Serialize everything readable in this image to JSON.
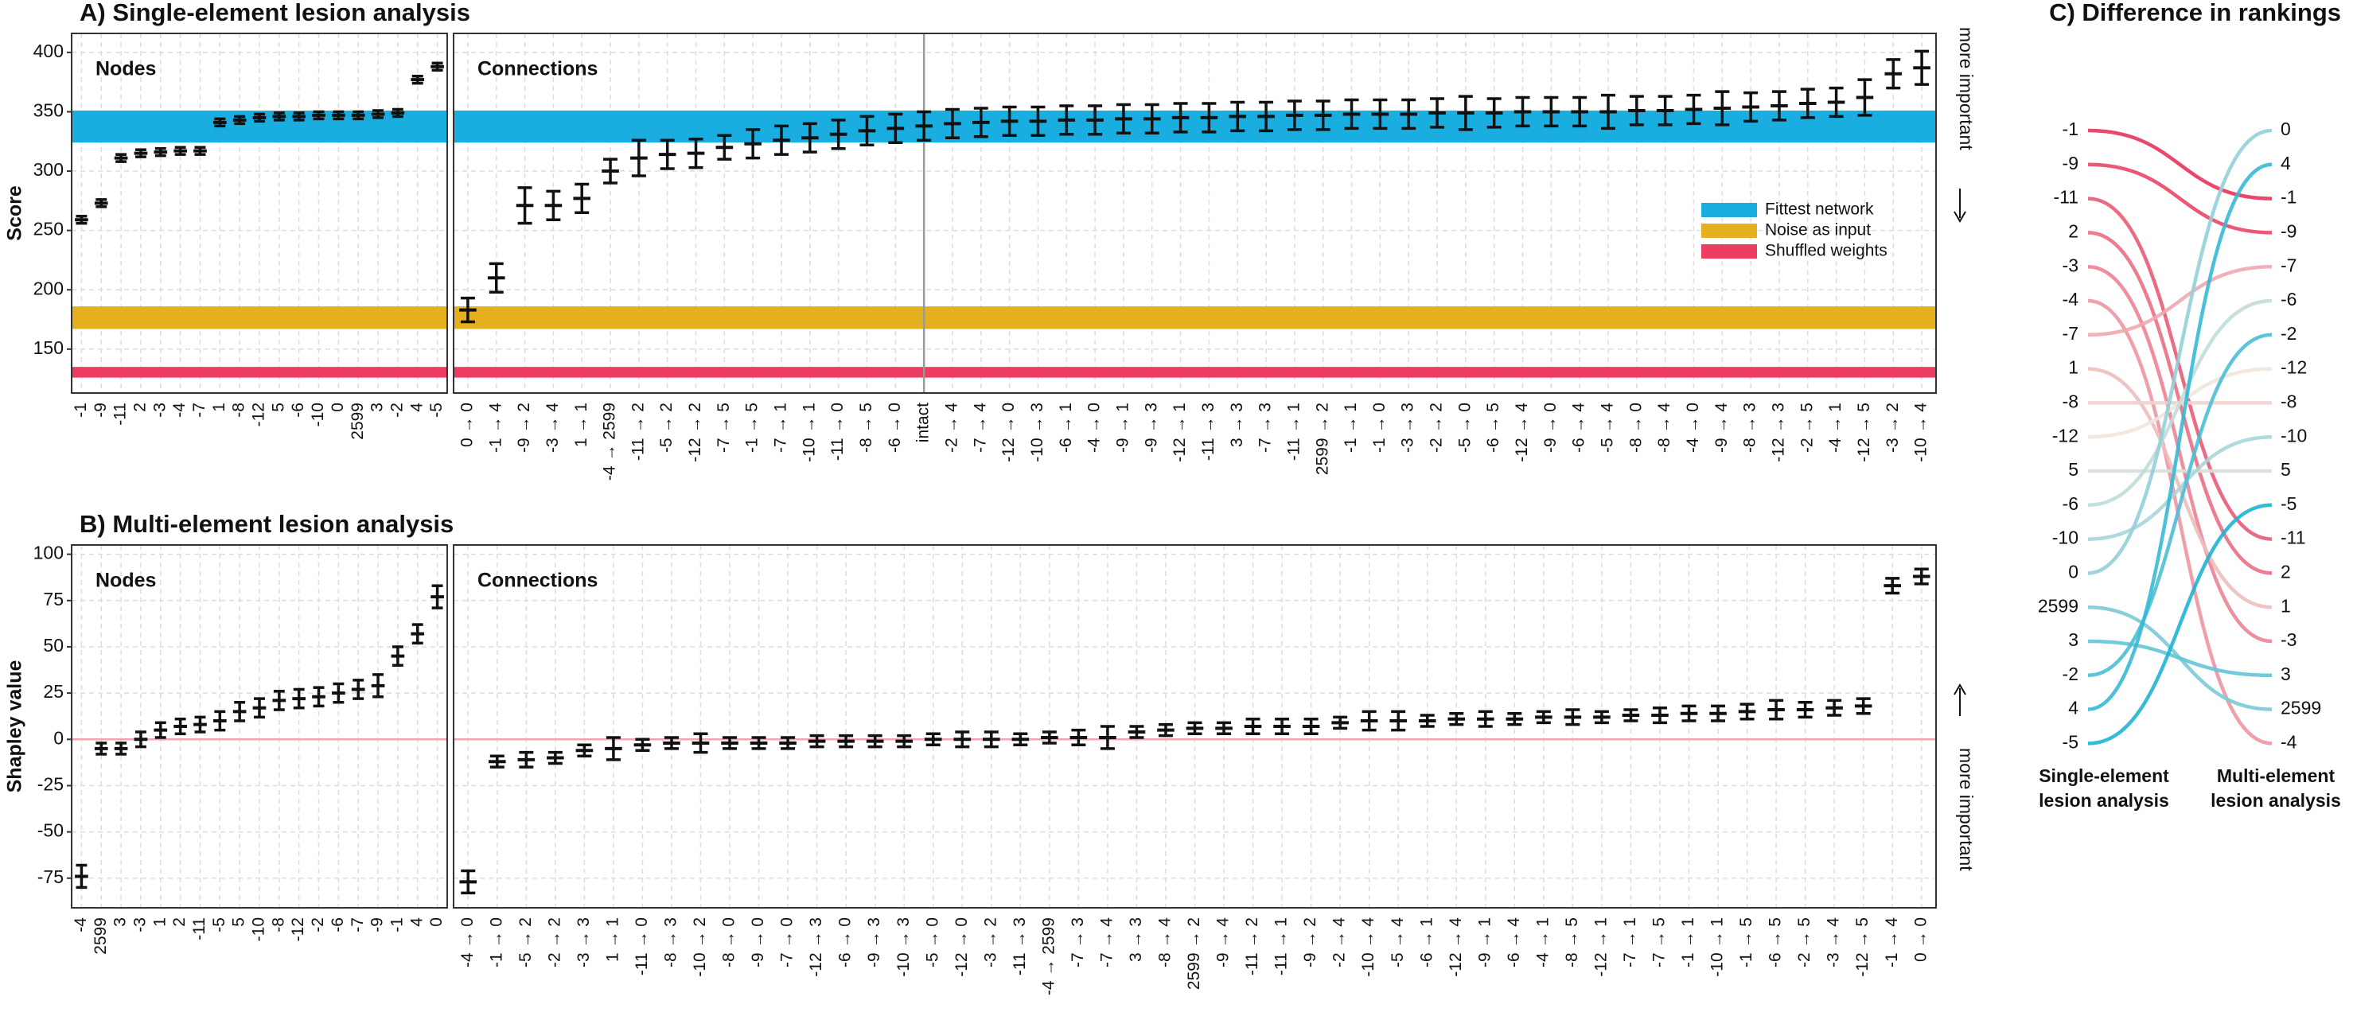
{
  "chart_data": [
    {
      "type": "errorbar",
      "title": "A) Single-element lesion analysis",
      "subtitle": "Nodes",
      "ylabel": "Score",
      "categories": [
        "-1",
        "-9",
        "-11",
        "2",
        "-3",
        "-4",
        "-7",
        "1",
        "-8",
        "-12",
        "5",
        "-6",
        "-10",
        "0",
        "2599",
        "3",
        "-2",
        "4",
        "-5"
      ],
      "category_colors": [
        "#e8335a",
        "#e8335a",
        "#111111",
        "#111111",
        "#111111",
        "#111111",
        "#111111",
        "#111111",
        "#111111",
        "#111111",
        "#111111",
        "#111111",
        "#111111",
        "#111111",
        "#111111",
        "#111111",
        "#111111",
        "#e8335a",
        "#e8335a"
      ],
      "values": [
        259,
        273,
        311,
        315,
        316,
        317,
        317,
        341,
        343,
        345,
        346,
        346,
        347,
        347,
        347,
        348,
        349,
        377,
        388
      ],
      "errors": [
        3,
        3,
        3,
        3,
        3,
        3,
        3,
        3,
        3,
        3,
        3,
        3,
        3,
        3,
        3,
        3,
        3,
        3,
        3
      ],
      "bands": [
        {
          "name": "Fittest network",
          "color": "#1aaee0",
          "range": [
            324,
            351
          ]
        },
        {
          "name": "Noise as input",
          "color": "#e4b01f",
          "range": [
            167,
            186
          ]
        },
        {
          "name": "Shuffled weights",
          "color": "#ee3d63",
          "range": [
            126,
            135
          ]
        }
      ],
      "ylim": [
        113,
        416
      ],
      "yticks": [
        150,
        200,
        250,
        300,
        350,
        400
      ],
      "grid": true
    },
    {
      "type": "errorbar",
      "subtitle": "Connections",
      "annotation": "more important",
      "categories": [
        "0 → 0",
        "-1 → 4",
        "-9 → 2",
        "-3 → 4",
        "1 → 1",
        "-4 → 2599",
        "-11 → 2",
        "-5 → 2",
        "-12 → 2",
        "-7 → 5",
        "-1 → 5",
        "-7 → 1",
        "-10 → 1",
        "-11 → 0",
        "-8 → 5",
        "-6 → 0",
        "intact",
        "-2 → 4",
        "-7 → 4",
        "-12 → 0",
        "-10 → 3",
        "-6 → 1",
        "-4 → 0",
        "-9 → 1",
        "-9 → 3",
        "-12 → 1",
        "-11 → 3",
        "3 → 3",
        "-7 → 3",
        "-11 → 1",
        "2599 → 2",
        "-1 → 1",
        "-1 → 0",
        "-3 → 3",
        "-2 → 2",
        "-5 → 0",
        "-6 → 5",
        "-12 → 4",
        "-9 → 0",
        "-6 → 4",
        "-5 → 4",
        "-8 → 0",
        "-8 → 4",
        "-4 → 0",
        "-9 → 4",
        "-8 → 3",
        "-12 → 3",
        "-2 → 5",
        "-4 → 1",
        "-12 → 5",
        "-3 → 2",
        "-10 → 4"
      ],
      "category_colors": [
        "#e8335a",
        "#e8335a",
        "#e8335a",
        "#e8335a",
        "#e8335a",
        "#111111",
        "#111111",
        "#111111",
        "#111111",
        "#111111",
        "#111111",
        "#111111",
        "#111111",
        "#111111",
        "#111111",
        "#111111",
        "#111111",
        "#111111",
        "#111111",
        "#111111",
        "#111111",
        "#111111",
        "#111111",
        "#111111",
        "#111111",
        "#111111",
        "#111111",
        "#111111",
        "#111111",
        "#111111",
        "#111111",
        "#111111",
        "#111111",
        "#111111",
        "#111111",
        "#111111",
        "#111111",
        "#111111",
        "#111111",
        "#111111",
        "#111111",
        "#111111",
        "#111111",
        "#111111",
        "#111111",
        "#111111",
        "#111111",
        "#111111",
        "#111111",
        "#111111",
        "#e8335a",
        "#e8335a"
      ],
      "values": [
        183,
        210,
        271,
        271,
        277,
        300,
        311,
        314,
        315,
        320,
        323,
        326,
        328,
        331,
        334,
        336,
        338,
        340,
        341,
        342,
        342,
        343,
        343,
        344,
        344,
        345,
        345,
        346,
        346,
        347,
        347,
        348,
        348,
        348,
        349,
        349,
        349,
        350,
        350,
        350,
        350,
        351,
        351,
        352,
        353,
        354,
        355,
        357,
        358,
        362,
        382,
        387
      ],
      "errors": [
        10,
        12,
        15,
        12,
        12,
        10,
        15,
        12,
        12,
        10,
        12,
        12,
        12,
        12,
        12,
        12,
        12,
        12,
        12,
        12,
        12,
        12,
        12,
        12,
        12,
        12,
        12,
        12,
        12,
        12,
        12,
        12,
        12,
        12,
        12,
        14,
        12,
        12,
        12,
        12,
        14,
        12,
        12,
        12,
        14,
        12,
        12,
        12,
        12,
        15,
        12,
        14
      ],
      "reference_category": "intact",
      "bands": [
        {
          "name": "Fittest network",
          "color": "#1aaee0",
          "range": [
            324,
            351
          ]
        },
        {
          "name": "Noise as input",
          "color": "#e4b01f",
          "range": [
            167,
            186
          ]
        },
        {
          "name": "Shuffled weights",
          "color": "#ee3d63",
          "range": [
            126,
            135
          ]
        }
      ],
      "legend": "upper right",
      "ylim": [
        113,
        416
      ],
      "grid": true
    },
    {
      "type": "errorbar",
      "title": "B) Multi-element lesion analysis",
      "subtitle": "Nodes",
      "ylabel": "Shapley value",
      "categories": [
        "-4",
        "2599",
        "3",
        "-3",
        "1",
        "2",
        "-11",
        "-5",
        "5",
        "-10",
        "-8",
        "-12",
        "-2",
        "-6",
        "-7",
        "-9",
        "-1",
        "4",
        "0"
      ],
      "category_colors": [
        "#e8335a",
        "#111111",
        "#111111",
        "#111111",
        "#111111",
        "#e8335a",
        "#111111",
        "#e8335a",
        "#111111",
        "#e8335a",
        "#e8335a",
        "#e8335a",
        "#111111",
        "#e8335a",
        "#e8335a",
        "#111111",
        "#e8335a",
        "#111111",
        "#111111"
      ],
      "values": [
        -74,
        -5,
        -5,
        0,
        5,
        7,
        8,
        10,
        15,
        17,
        21,
        22,
        23,
        25,
        27,
        29,
        45,
        57,
        77
      ],
      "errors": [
        6,
        3,
        3,
        4,
        4,
        4,
        4,
        5,
        5,
        5,
        5,
        5,
        5,
        5,
        5,
        6,
        5,
        5,
        6
      ],
      "hline": 0,
      "hline_color": "#f4a3b3",
      "ylim": [
        -91,
        105
      ],
      "yticks": [
        -75,
        -50,
        -25,
        0,
        25,
        50,
        75,
        100
      ],
      "grid": true
    },
    {
      "type": "errorbar",
      "subtitle": "Connections",
      "annotation": "more important",
      "categories": [
        "-4 → 0",
        "-1 → 0",
        "-5 → 2",
        "-2 → 2",
        "-3 → 3",
        "1 → 1",
        "-11 → 0",
        "-8 → 3",
        "-10 → 2",
        "-8 → 0",
        "-9 → 0",
        "-7 → 0",
        "-12 → 3",
        "-6 → 0",
        "-9 → 3",
        "-10 → 3",
        "-5 → 0",
        "-12 → 0",
        "-3 → 2",
        "-11 → 3",
        "-4 → 2599",
        "-7 → 3",
        "-7 → 4",
        "3 → 3",
        "-8 → 4",
        "2599 → 2",
        "-9 → 4",
        "-11 → 2",
        "-11 → 1",
        "-9 → 2",
        "-2 → 4",
        "-10 → 4",
        "-5 → 4",
        "-6 → 1",
        "-12 → 4",
        "-9 → 1",
        "-6 → 4",
        "-4 → 1",
        "-8 → 5",
        "-12 → 1",
        "-7 → 1",
        "-7 → 5",
        "-1 → 1",
        "-10 → 1",
        "-1 → 5",
        "-6 → 5",
        "-2 → 5",
        "-3 → 4",
        "-12 → 5",
        "-1 → 4",
        "0 → 0"
      ],
      "category_colors": [
        "#e8335a",
        "#e8335a",
        "#111111",
        "#e8335a",
        "#111111",
        "#111111",
        "#111111",
        "#111111",
        "#111111",
        "#111111",
        "#111111",
        "#111111",
        "#111111",
        "#111111",
        "#111111",
        "#111111",
        "#111111",
        "#111111",
        "#111111",
        "#111111",
        "#111111",
        "#111111",
        "#111111",
        "#111111",
        "#111111",
        "#111111",
        "#111111",
        "#111111",
        "#111111",
        "#111111",
        "#e8335a",
        "#e8335a",
        "#e8335a",
        "#e8335a",
        "#e8335a",
        "#e8335a",
        "#e8335a",
        "#e8335a",
        "#e8335a",
        "#e8335a",
        "#e8335a",
        "#e8335a",
        "#e8335a",
        "#e8335a",
        "#e8335a",
        "#e8335a",
        "#e8335a",
        "#e8335a",
        "#e8335a",
        "#e8335a",
        "#e8335a"
      ],
      "values": [
        -77,
        -12,
        -11,
        -10,
        -6,
        -5,
        -3,
        -2,
        -2,
        -2,
        -2,
        -2,
        -1,
        -1,
        -1,
        -1,
        0,
        0,
        0,
        0,
        1,
        1,
        1,
        4,
        5,
        6,
        6,
        7,
        7,
        7,
        9,
        10,
        10,
        10,
        11,
        11,
        11,
        12,
        12,
        12,
        13,
        13,
        14,
        14,
        15,
        16,
        16,
        17,
        18,
        83,
        88
      ],
      "errors": [
        6,
        3,
        4,
        3,
        3,
        6,
        3,
        3,
        5,
        3,
        3,
        3,
        3,
        3,
        3,
        3,
        3,
        4,
        4,
        3,
        3,
        4,
        6,
        3,
        3,
        3,
        3,
        4,
        4,
        4,
        3,
        5,
        5,
        3,
        3,
        4,
        3,
        3,
        4,
        3,
        3,
        4,
        4,
        4,
        4,
        5,
        4,
        4,
        4,
        4,
        4
      ],
      "hline": 0,
      "hline_color": "#f4a3b3",
      "ylim": [
        -91,
        105
      ],
      "grid": true
    },
    {
      "type": "slope",
      "title": "C) Difference in rankings",
      "left": [
        "-1",
        "-9",
        "-11",
        "2",
        "-3",
        "-4",
        "-7",
        "1",
        "-8",
        "-12",
        "5",
        "-6",
        "-10",
        "0",
        "2599",
        "3",
        "-2",
        "4",
        "-5"
      ],
      "right": [
        "0",
        "4",
        "-1",
        "-9",
        "-7",
        "-6",
        "-2",
        "-12",
        "-8",
        "-10",
        "5",
        "-5",
        "-11",
        "2",
        "1",
        "-3",
        "3",
        "2599",
        "-4"
      ],
      "left_caption": [
        "Single-element",
        "lesion analysis"
      ],
      "right_caption": [
        "Multi-element",
        "lesion analysis"
      ],
      "colors": [
        "#e8335a",
        "#efe6dc",
        "#1fb3d4"
      ]
    }
  ]
}
